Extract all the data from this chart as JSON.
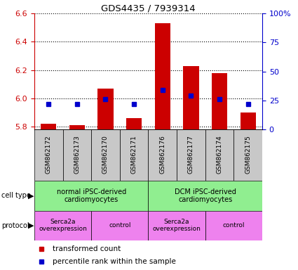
{
  "title": "GDS4435 / 7939314",
  "samples": [
    "GSM862172",
    "GSM862173",
    "GSM862170",
    "GSM862171",
    "GSM862176",
    "GSM862177",
    "GSM862174",
    "GSM862175"
  ],
  "red_values": [
    5.82,
    5.81,
    6.07,
    5.86,
    6.53,
    6.23,
    6.18,
    5.9
  ],
  "blue_values": [
    22,
    22,
    26,
    22,
    34,
    29,
    26,
    22
  ],
  "left_ylim": [
    5.78,
    6.6
  ],
  "left_yticks": [
    5.8,
    6.0,
    6.2,
    6.4,
    6.6
  ],
  "right_ylim": [
    0,
    100
  ],
  "right_yticks": [
    0,
    25,
    50,
    75,
    100
  ],
  "right_yticklabels": [
    "0",
    "25",
    "50",
    "75",
    "100%"
  ],
  "bar_color": "#CC0000",
  "square_color": "#0000CC",
  "bar_width": 0.55,
  "tick_color_left": "#CC0000",
  "tick_color_right": "#0000CC",
  "cell_green": "#90EE90",
  "proto_magenta": "#EE82EE",
  "label_gray": "#C8C8C8"
}
